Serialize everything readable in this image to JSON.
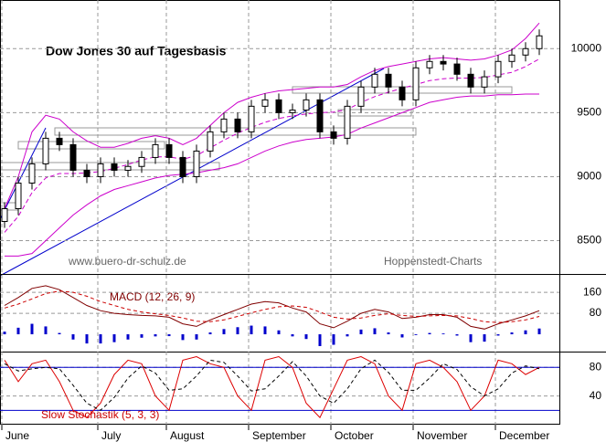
{
  "chart_data": [
    {
      "type": "candlestick",
      "title": "Dow Jones 30 auf Tagesbasis",
      "annotations": [
        "www.buero-dr-schulz.de",
        "Hoppenstedt-Charts"
      ],
      "categories": [
        "June",
        null,
        null,
        null,
        null,
        null,
        null,
        "July",
        null,
        null,
        null,
        null,
        "August",
        null,
        null,
        null,
        null,
        null,
        "September",
        null,
        null,
        null,
        null,
        null,
        "October",
        null,
        null,
        null,
        null,
        null,
        "November",
        null,
        null,
        null,
        null,
        null,
        "December",
        null,
        null,
        null
      ],
      "open": [
        8650,
        8750,
        8950,
        9100,
        9300,
        9250,
        9050,
        9000,
        9100,
        9050,
        9080,
        9150,
        9250,
        9150,
        9000,
        9200,
        9350,
        9450,
        9350,
        9550,
        9600,
        9500,
        9520,
        9600,
        9350,
        9300,
        9550,
        9700,
        9800,
        9700,
        9600,
        9850,
        9900,
        9880,
        9800,
        9700,
        9780,
        9900,
        9950,
        10000
      ],
      "high": [
        8800,
        9000,
        9150,
        9350,
        9350,
        9300,
        9100,
        9150,
        9150,
        9130,
        9200,
        9300,
        9300,
        9200,
        9250,
        9400,
        9500,
        9500,
        9600,
        9650,
        9650,
        9570,
        9650,
        9650,
        9400,
        9600,
        9750,
        9850,
        9850,
        9750,
        9900,
        9950,
        9950,
        9930,
        9850,
        9830,
        9950,
        10000,
        10050,
        10150
      ],
      "low": [
        8600,
        8700,
        8900,
        9050,
        9200,
        9000,
        8950,
        8950,
        9000,
        9000,
        9030,
        9100,
        9100,
        8950,
        8950,
        9150,
        9300,
        9300,
        9300,
        9500,
        9450,
        9450,
        9470,
        9300,
        9250,
        9250,
        9500,
        9650,
        9650,
        9550,
        9550,
        9800,
        9830,
        9750,
        9650,
        9650,
        9730,
        9850,
        9900,
        9950
      ],
      "close": [
        8750,
        8950,
        9100,
        9300,
        9250,
        9050,
        9000,
        9100,
        9050,
        9080,
        9150,
        9250,
        9150,
        9000,
        9200,
        9350,
        9450,
        9350,
        9550,
        9600,
        9500,
        9520,
        9600,
        9350,
        9300,
        9550,
        9700,
        9800,
        9700,
        9600,
        9850,
        9900,
        9880,
        9800,
        9700,
        9780,
        9900,
        9950,
        10000,
        10100
      ],
      "bands": {
        "color": "#cc00cc",
        "upper": [
          8750,
          9000,
          9350,
          9480,
          9450,
          9350,
          9280,
          9230,
          9230,
          9260,
          9300,
          9320,
          9300,
          9250,
          9300,
          9400,
          9500,
          9580,
          9620,
          9650,
          9670,
          9680,
          9690,
          9700,
          9700,
          9720,
          9780,
          9830,
          9860,
          9880,
          9900,
          9920,
          9930,
          9920,
          9910,
          9920,
          9950,
          9990,
          10080,
          10200
        ],
        "middle": [
          8565,
          8690,
          8875,
          8990,
          9025,
          9025,
          9030,
          9040,
          9065,
          9095,
          9130,
          9155,
          9155,
          9135,
          9165,
          9225,
          9285,
          9340,
          9385,
          9425,
          9455,
          9475,
          9490,
          9500,
          9505,
          9525,
          9580,
          9625,
          9660,
          9690,
          9720,
          9750,
          9765,
          9770,
          9770,
          9775,
          9795,
          9815,
          9860,
          9920
        ],
        "lower": [
          8380,
          8380,
          8400,
          8500,
          8600,
          8700,
          8780,
          8850,
          8900,
          8930,
          8960,
          8990,
          9010,
          9020,
          9030,
          9050,
          9070,
          9100,
          9150,
          9200,
          9240,
          9270,
          9290,
          9300,
          9310,
          9330,
          9380,
          9420,
          9460,
          9500,
          9540,
          9580,
          9600,
          9620,
          9630,
          9630,
          9640,
          9640,
          9645,
          9645
        ]
      },
      "ylim": [
        8240,
        10380
      ],
      "yticks": [
        8500,
        9000,
        9500,
        10000
      ],
      "grid": true
    },
    {
      "type": "macd",
      "label": "MACD (12, 26, 9)",
      "series": [
        {
          "color": "#800000",
          "values": [
            110,
            140,
            175,
            185,
            170,
            140,
            110,
            90,
            80,
            75,
            72,
            70,
            65,
            40,
            30,
            55,
            75,
            95,
            115,
            125,
            120,
            100,
            85,
            40,
            25,
            50,
            80,
            95,
            85,
            60,
            65,
            75,
            75,
            65,
            30,
            20,
            40,
            55,
            70,
            90
          ]
        },
        {
          "color": "#cc0000",
          "dashed": true,
          "values": [
            100,
            115,
            135,
            155,
            165,
            160,
            145,
            125,
            110,
            95,
            85,
            78,
            72,
            62,
            50,
            48,
            55,
            68,
            82,
            95,
            105,
            108,
            103,
            85,
            65,
            58,
            62,
            72,
            78,
            72,
            68,
            70,
            72,
            70,
            60,
            48,
            45,
            48,
            55,
            68
          ]
        }
      ],
      "histogram": {
        "color": "#0000cc",
        "values": [
          10,
          25,
          40,
          30,
          5,
          -20,
          -35,
          -35,
          -30,
          -20,
          -13,
          -8,
          -7,
          -22,
          -20,
          7,
          20,
          27,
          33,
          30,
          15,
          -8,
          -18,
          -45,
          -40,
          -8,
          18,
          23,
          7,
          -12,
          -3,
          5,
          3,
          -5,
          -30,
          -28,
          -5,
          7,
          15,
          22
        ]
      },
      "ylim": [
        -66,
        230
      ],
      "yticks": [
        80,
        160
      ],
      "grid": true
    },
    {
      "type": "stochastic",
      "label": "Slow Stochastik (5, 3, 3)",
      "series": [
        {
          "color": "#dd0000",
          "values": [
            90,
            60,
            85,
            90,
            60,
            20,
            10,
            30,
            70,
            90,
            85,
            40,
            20,
            90,
            95,
            85,
            80,
            40,
            20,
            90,
            95,
            80,
            30,
            10,
            50,
            90,
            95,
            85,
            40,
            20,
            85,
            90,
            80,
            60,
            20,
            40,
            90,
            85,
            70,
            80
          ]
        },
        {
          "color": "#000000",
          "dashed": true,
          "values": [
            85,
            75,
            78,
            80,
            78,
            55,
            30,
            20,
            38,
            65,
            82,
            72,
            48,
            50,
            68,
            90,
            87,
            68,
            47,
            50,
            68,
            88,
            68,
            40,
            30,
            50,
            78,
            90,
            73,
            48,
            48,
            65,
            85,
            77,
            53,
            40,
            50,
            72,
            82,
            78
          ]
        }
      ],
      "ref_lines": [
        20,
        80
      ],
      "ref_color": "#0000cc",
      "ylim": [
        0,
        102
      ],
      "yticks": [
        40,
        80
      ],
      "grid": true
    }
  ]
}
